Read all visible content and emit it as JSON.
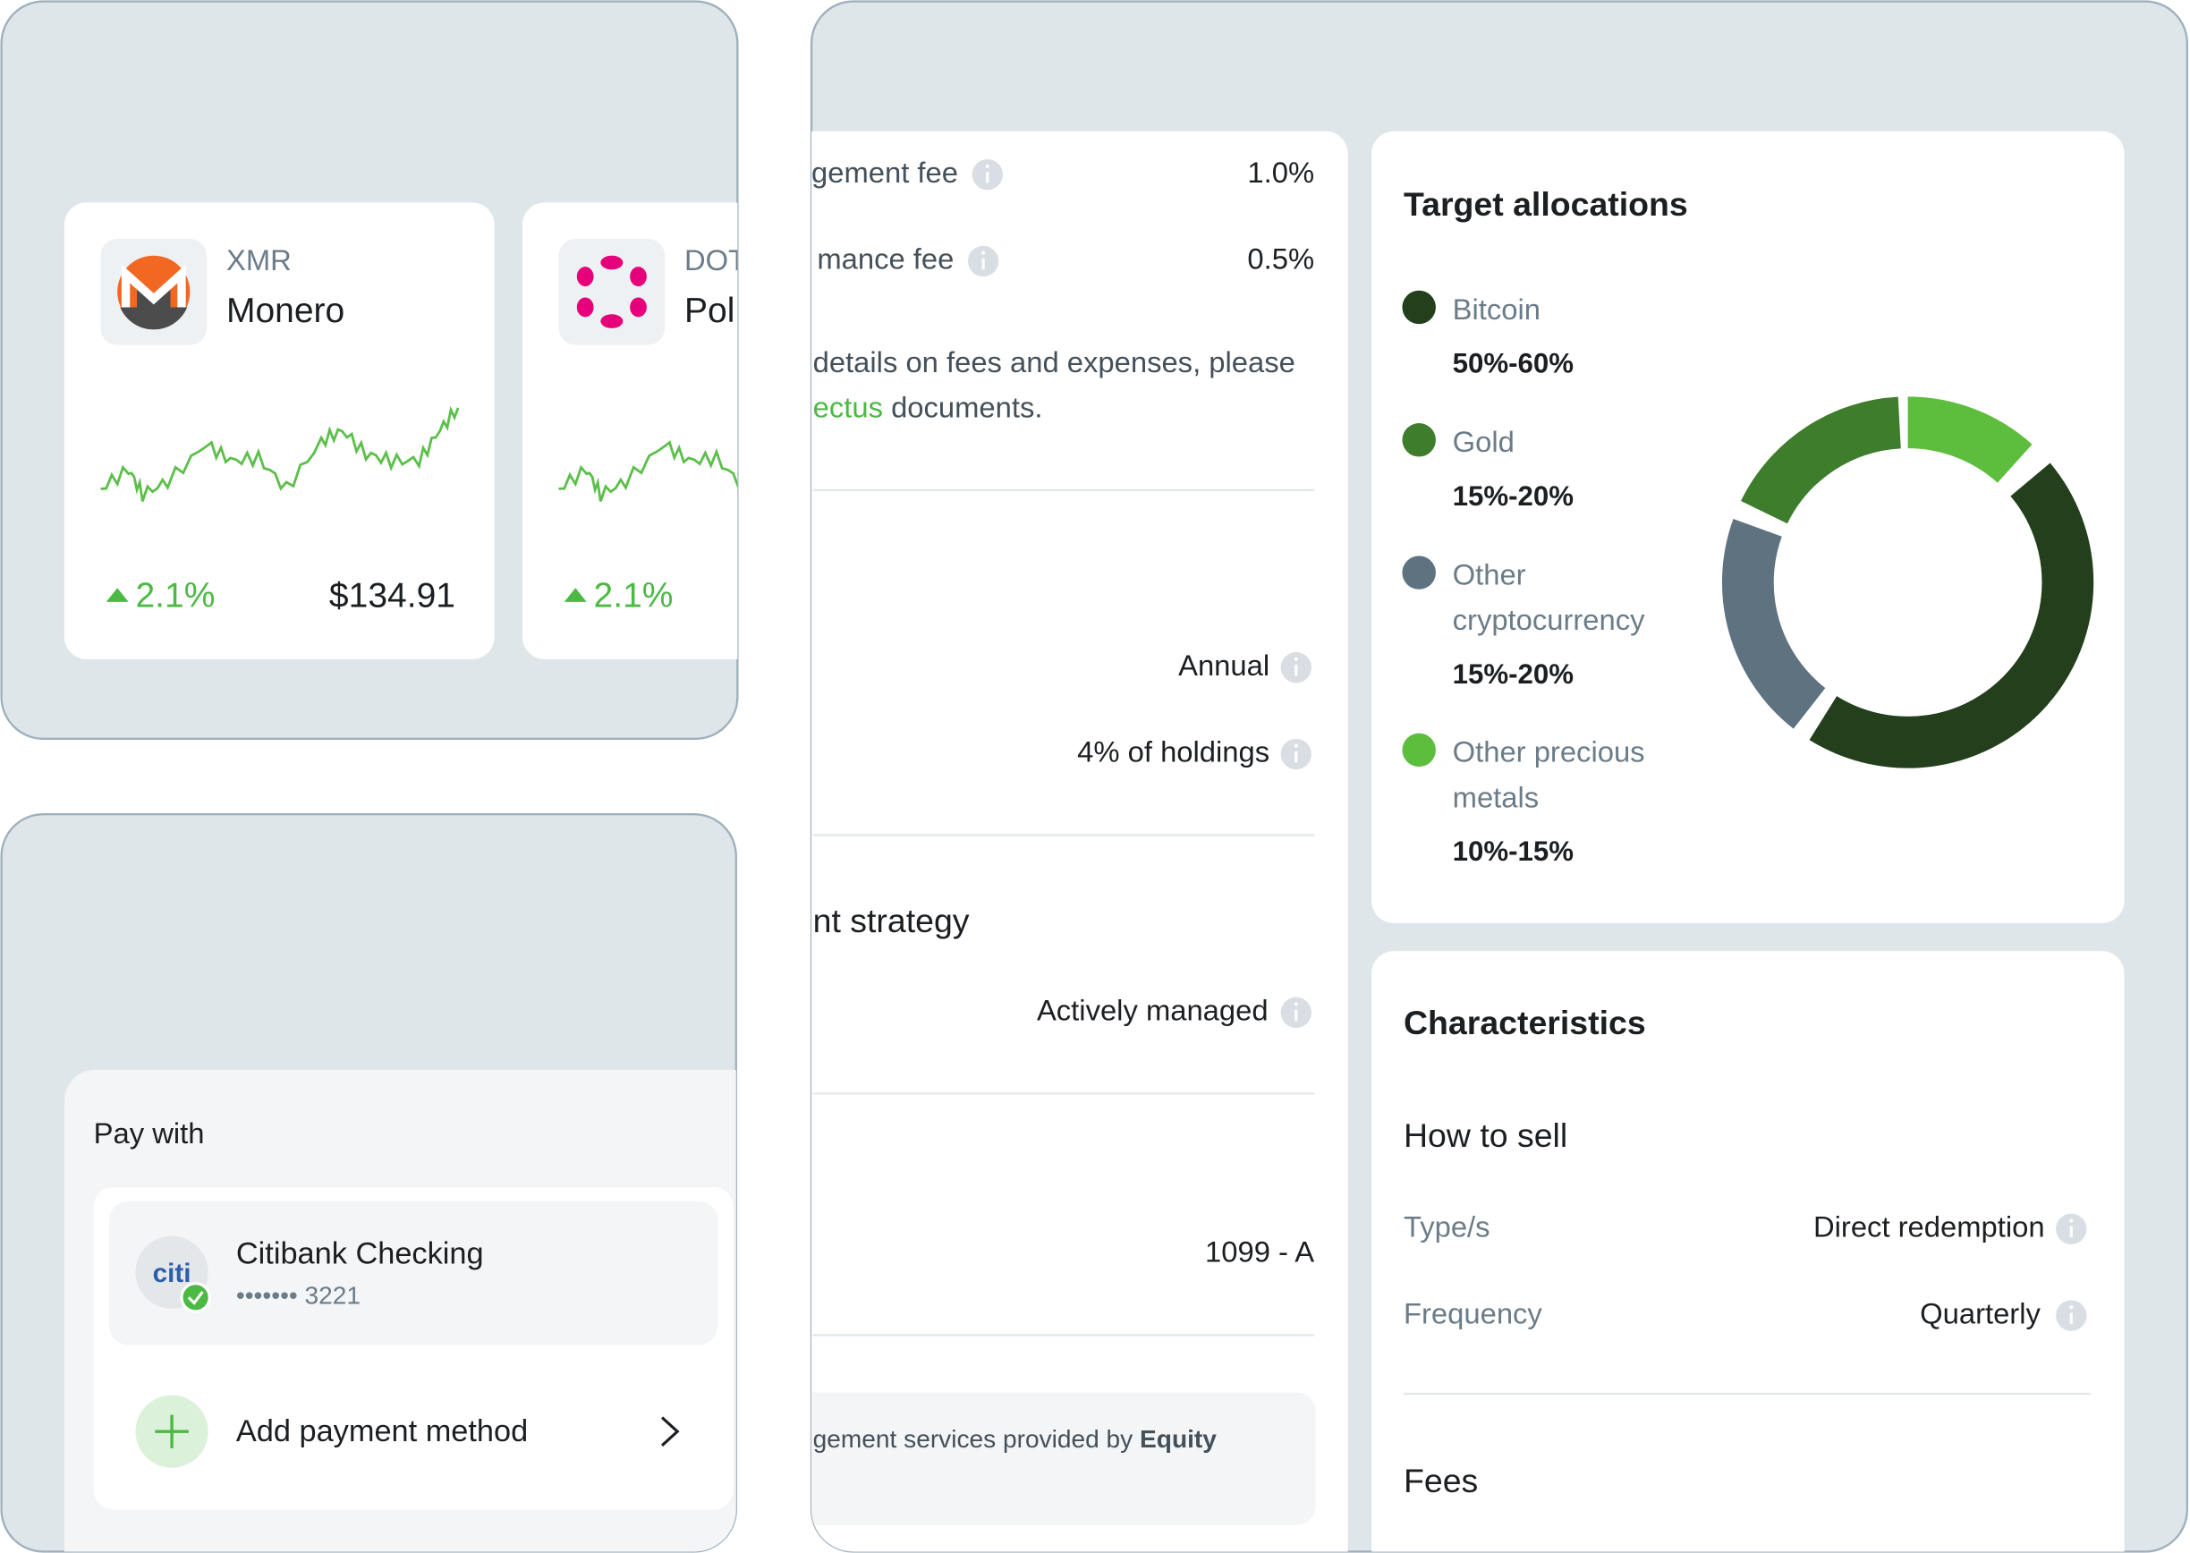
{
  "coin_cards": [
    {
      "ticker": "XMR",
      "name": "Monero",
      "change": "2.1%",
      "price": "$134.91"
    },
    {
      "ticker": "DOT",
      "name": "Pol",
      "change": "2.1%"
    }
  ],
  "payment": {
    "title": "Pay with",
    "method_logo": "citi",
    "method_name": "Citibank Checking",
    "method_number": "••••••• 3221",
    "add_label": "Add payment method"
  },
  "fund_details": {
    "rows": [
      {
        "label": "gement fee",
        "value": "1.0%"
      },
      {
        "label": "mance fee",
        "value": "0.5%"
      }
    ],
    "note_line1": "details on fees and expenses, please",
    "note_link": "ectus",
    "note_rest": " documents.",
    "frequency": "Annual",
    "amount": "4% of holdings",
    "strategy_heading": "nt strategy",
    "strategy": "Actively managed",
    "tax_form": "1099 - A",
    "footer_text": "gement services provided by ",
    "footer_bold": "Equity"
  },
  "target_allocations": {
    "title": "Target allocations",
    "items": [
      {
        "name_lines": [
          "Bitcoin"
        ],
        "range": "50%-60%",
        "color": "#233f1c"
      },
      {
        "name_lines": [
          "Gold"
        ],
        "range": "15%-20%",
        "color": "#3e7d2b"
      },
      {
        "name_lines": [
          "Other",
          "cryptocurrency"
        ],
        "range": "15%-20%",
        "color": "#5f7280"
      },
      {
        "name_lines": [
          "Other precious",
          "metals"
        ],
        "range": "10%-15%",
        "color": "#5dbd3d"
      }
    ]
  },
  "characteristics": {
    "title": "Characteristics",
    "how_to_sell": "How to sell",
    "rows": [
      {
        "label": "Type/s",
        "value": "Direct redemption"
      },
      {
        "label": "Frequency",
        "value": "Quarterly"
      }
    ],
    "fees_heading": "Fees"
  }
}
